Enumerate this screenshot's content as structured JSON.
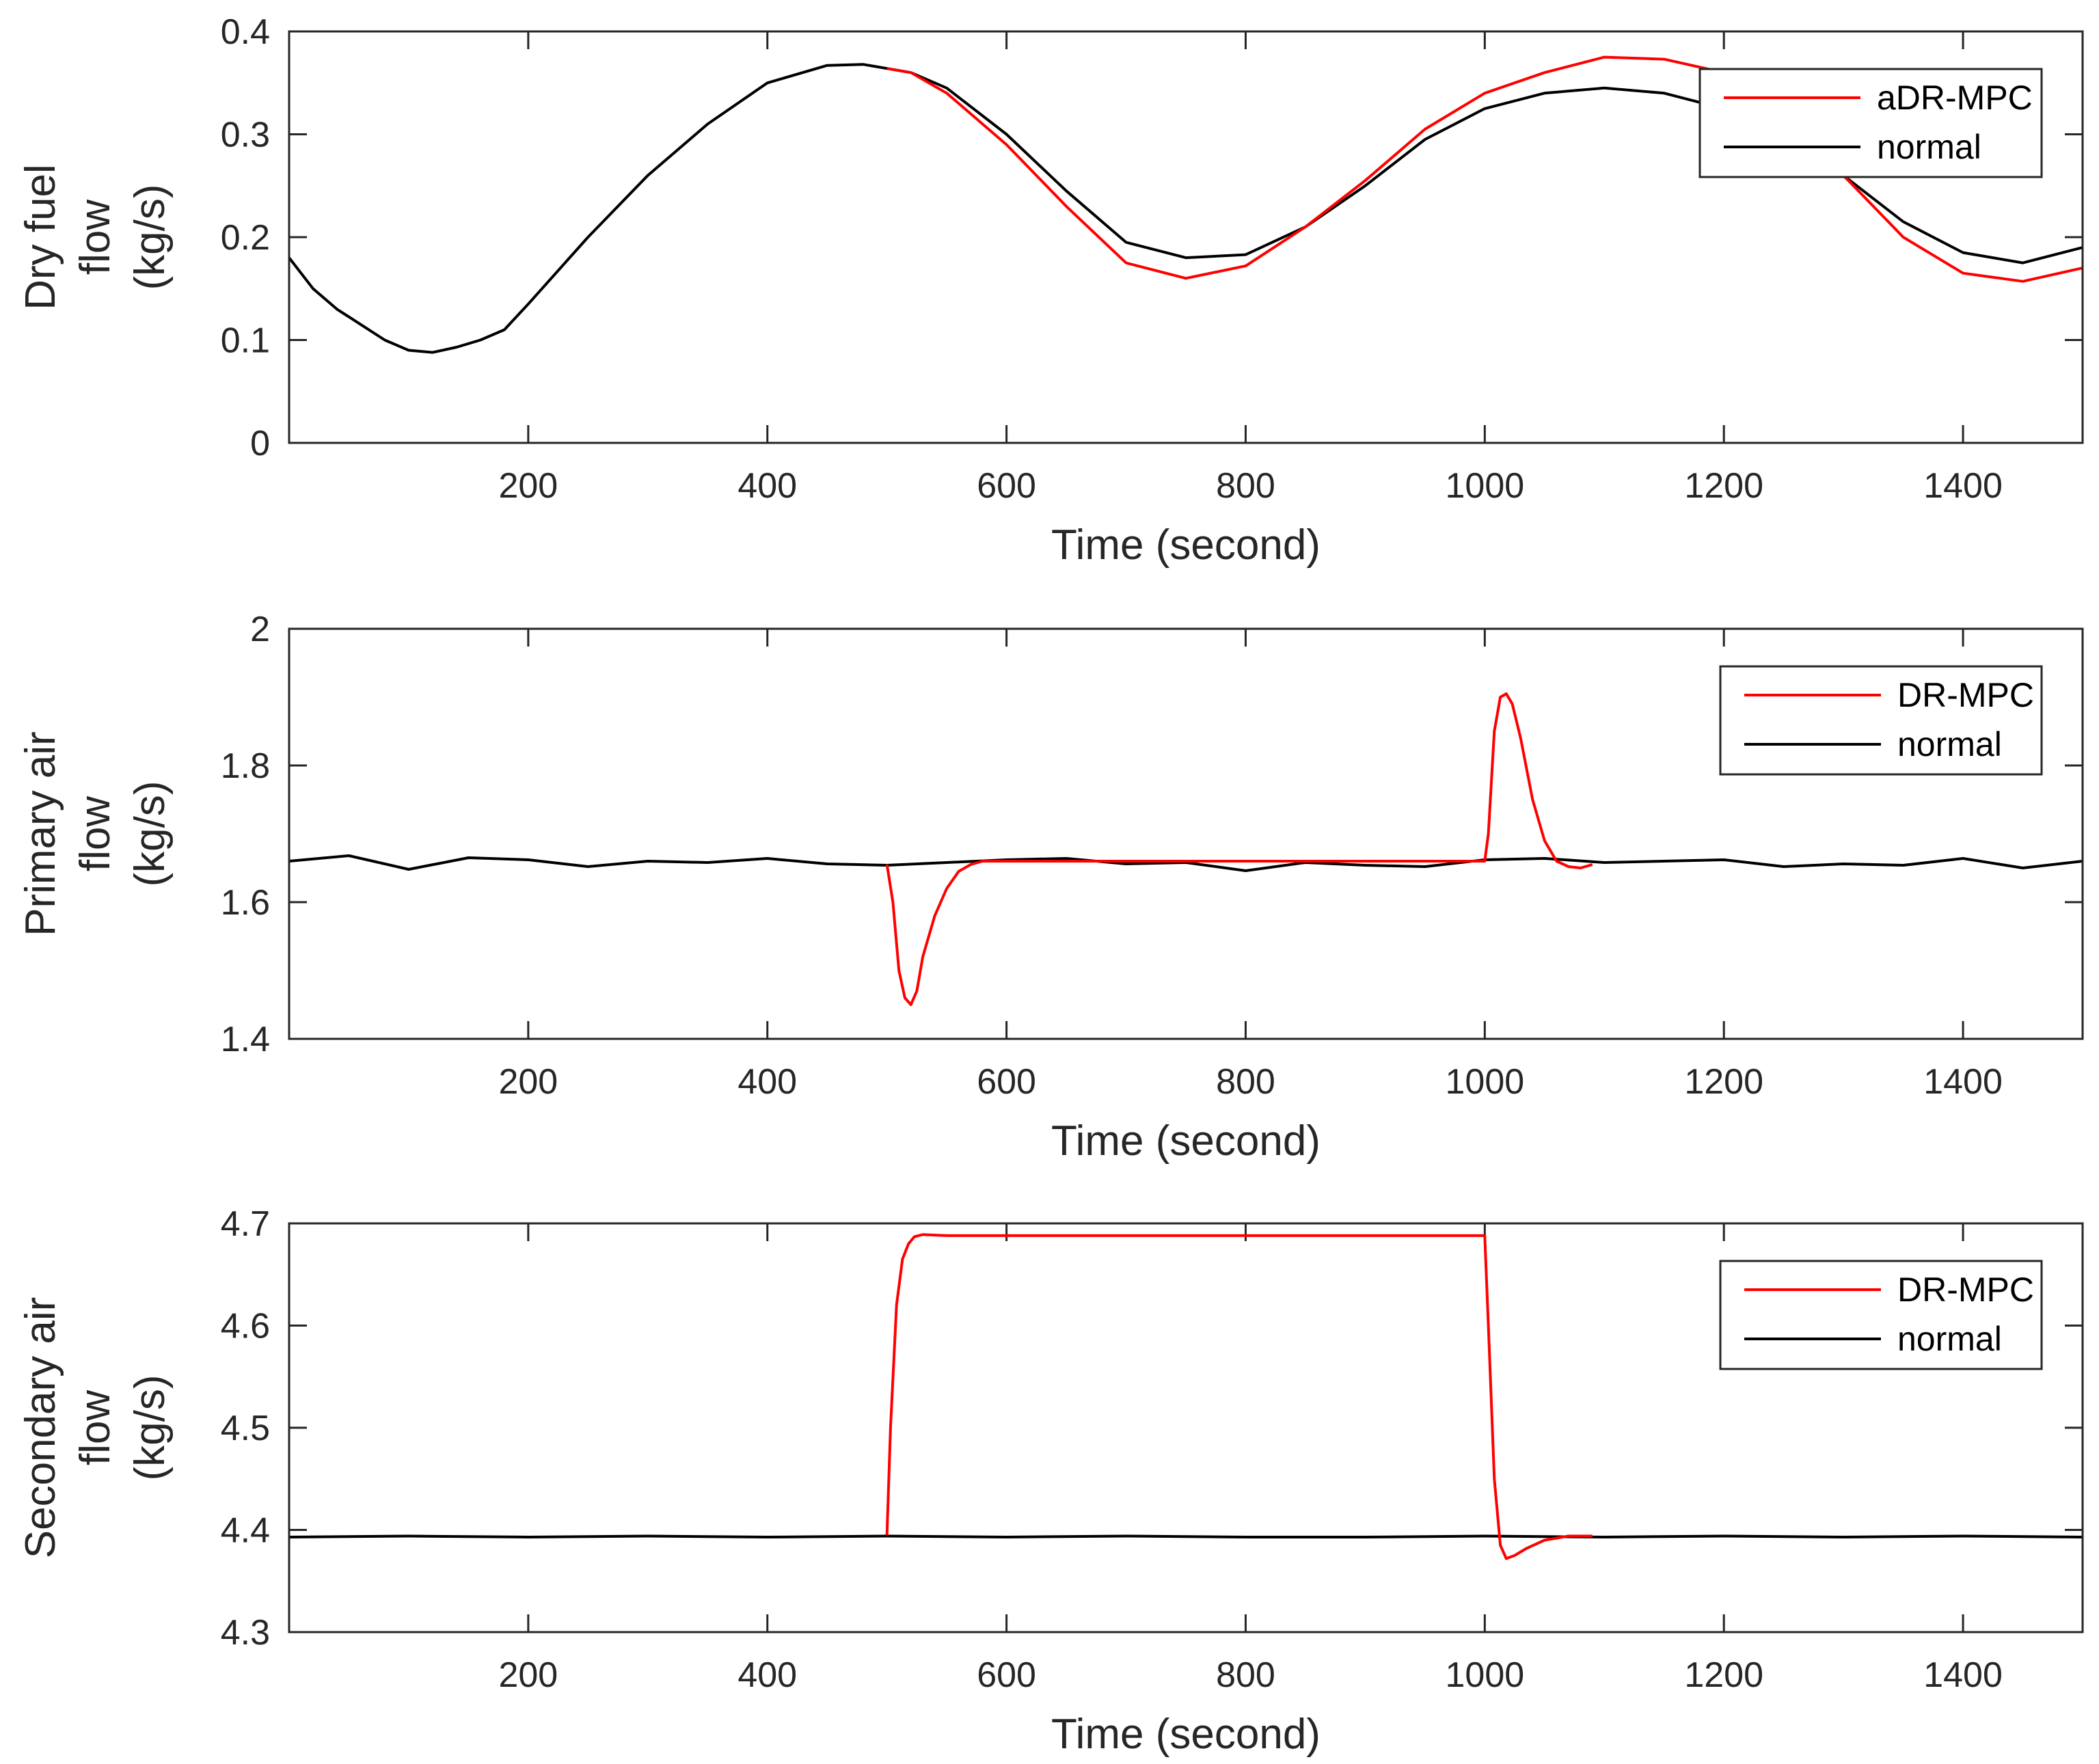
{
  "chart_data": [
    {
      "type": "line",
      "xlabel": "Time (second)",
      "ylabel_lines": [
        "Dry fuel",
        "flow",
        "(kg/s)"
      ],
      "xlim": [
        0,
        1500
      ],
      "ylim": [
        0,
        0.4
      ],
      "xticks": [
        200,
        400,
        600,
        800,
        1000,
        1200,
        1400
      ],
      "yticks": [
        0,
        0.1,
        0.2,
        0.3,
        0.4
      ],
      "ytick_labels": [
        "0",
        "0.1",
        "0.2",
        "0.3",
        "0.4"
      ],
      "legend_position": "top-right",
      "series": [
        {
          "name": "aDR-MPC",
          "color": "#ff0000",
          "x": [
            500,
            520,
            550,
            600,
            650,
            700,
            750,
            800,
            850,
            900,
            950,
            1000,
            1050,
            1100,
            1150,
            1200,
            1250,
            1300,
            1350,
            1400,
            1450,
            1500
          ],
          "y": [
            0.364,
            0.36,
            0.34,
            0.29,
            0.23,
            0.175,
            0.16,
            0.172,
            0.21,
            0.255,
            0.305,
            0.34,
            0.36,
            0.375,
            0.373,
            0.36,
            0.32,
            0.26,
            0.2,
            0.165,
            0.157,
            0.17
          ]
        },
        {
          "name": "normal",
          "color": "#000000",
          "x": [
            0,
            20,
            40,
            60,
            80,
            100,
            120,
            140,
            160,
            180,
            200,
            250,
            300,
            350,
            400,
            450,
            480,
            520,
            550,
            600,
            650,
            700,
            750,
            800,
            850,
            900,
            950,
            1000,
            1050,
            1100,
            1150,
            1200,
            1250,
            1300,
            1350,
            1400,
            1450,
            1500
          ],
          "y": [
            0.18,
            0.15,
            0.13,
            0.115,
            0.1,
            0.09,
            0.088,
            0.093,
            0.1,
            0.11,
            0.135,
            0.2,
            0.26,
            0.31,
            0.35,
            0.367,
            0.368,
            0.36,
            0.345,
            0.3,
            0.245,
            0.195,
            0.18,
            0.183,
            0.21,
            0.25,
            0.295,
            0.325,
            0.34,
            0.345,
            0.34,
            0.325,
            0.3,
            0.26,
            0.215,
            0.185,
            0.175,
            0.19
          ]
        }
      ]
    },
    {
      "type": "line",
      "xlabel": "Time (second)",
      "ylabel_lines": [
        "Primary air",
        "flow",
        "(kg/s)"
      ],
      "xlim": [
        0,
        1500
      ],
      "ylim": [
        1.4,
        2.0
      ],
      "xticks": [
        200,
        400,
        600,
        800,
        1000,
        1200,
        1400
      ],
      "yticks": [
        1.4,
        1.6,
        1.8,
        2.0
      ],
      "ytick_labels": [
        "1.4",
        "1.6",
        "1.8",
        "2"
      ],
      "legend_position": "top-right",
      "series": [
        {
          "name": "DR-MPC",
          "color": "#ff0000",
          "x": [
            500,
            505,
            510,
            515,
            520,
            525,
            530,
            540,
            550,
            560,
            570,
            580,
            590,
            1000,
            1003,
            1008,
            1013,
            1018,
            1023,
            1030,
            1040,
            1050,
            1060,
            1070,
            1080,
            1090
          ],
          "y": [
            1.655,
            1.6,
            1.5,
            1.46,
            1.45,
            1.47,
            1.52,
            1.58,
            1.62,
            1.645,
            1.655,
            1.66,
            1.66,
            1.66,
            1.7,
            1.85,
            1.9,
            1.905,
            1.89,
            1.84,
            1.75,
            1.69,
            1.66,
            1.652,
            1.65,
            1.655
          ]
        },
        {
          "name": "normal",
          "color": "#000000",
          "x": [
            0,
            50,
            100,
            150,
            200,
            250,
            300,
            350,
            400,
            450,
            500,
            550,
            600,
            650,
            700,
            750,
            800,
            850,
            900,
            950,
            1000,
            1050,
            1100,
            1150,
            1200,
            1250,
            1300,
            1350,
            1400,
            1450,
            1500
          ],
          "y": [
            1.66,
            1.668,
            1.648,
            1.665,
            1.662,
            1.652,
            1.66,
            1.658,
            1.664,
            1.656,
            1.654,
            1.658,
            1.662,
            1.664,
            1.656,
            1.658,
            1.646,
            1.658,
            1.654,
            1.652,
            1.662,
            1.664,
            1.658,
            1.66,
            1.662,
            1.652,
            1.656,
            1.654,
            1.664,
            1.65,
            1.66
          ]
        }
      ]
    },
    {
      "type": "line",
      "xlabel": "Time (second)",
      "ylabel_lines": [
        "Secondary air",
        "flow",
        "(kg/s)"
      ],
      "xlim": [
        0,
        1500
      ],
      "ylim": [
        4.3,
        4.7
      ],
      "xticks": [
        200,
        400,
        600,
        800,
        1000,
        1200,
        1400
      ],
      "yticks": [
        4.3,
        4.4,
        4.5,
        4.6,
        4.7
      ],
      "ytick_labels": [
        "4.3",
        "4.4",
        "4.5",
        "4.6",
        "4.7"
      ],
      "legend_position": "top-right",
      "series": [
        {
          "name": "DR-MPC",
          "color": "#ff0000",
          "x": [
            500,
            503,
            508,
            513,
            518,
            523,
            530,
            550,
            600,
            700,
            800,
            900,
            1000,
            1003,
            1008,
            1013,
            1018,
            1025,
            1035,
            1050,
            1070,
            1090
          ],
          "y": [
            4.395,
            4.5,
            4.62,
            4.665,
            4.68,
            4.687,
            4.689,
            4.688,
            4.688,
            4.688,
            4.688,
            4.688,
            4.688,
            4.6,
            4.45,
            4.385,
            4.372,
            4.375,
            4.382,
            4.39,
            4.394,
            4.394
          ]
        },
        {
          "name": "normal",
          "color": "#000000",
          "x": [
            0,
            100,
            200,
            300,
            400,
            500,
            600,
            700,
            800,
            900,
            1000,
            1100,
            1200,
            1300,
            1400,
            1500
          ],
          "y": [
            4.393,
            4.394,
            4.393,
            4.394,
            4.393,
            4.394,
            4.393,
            4.394,
            4.393,
            4.393,
            4.394,
            4.393,
            4.394,
            4.393,
            4.394,
            4.393
          ]
        }
      ]
    }
  ]
}
